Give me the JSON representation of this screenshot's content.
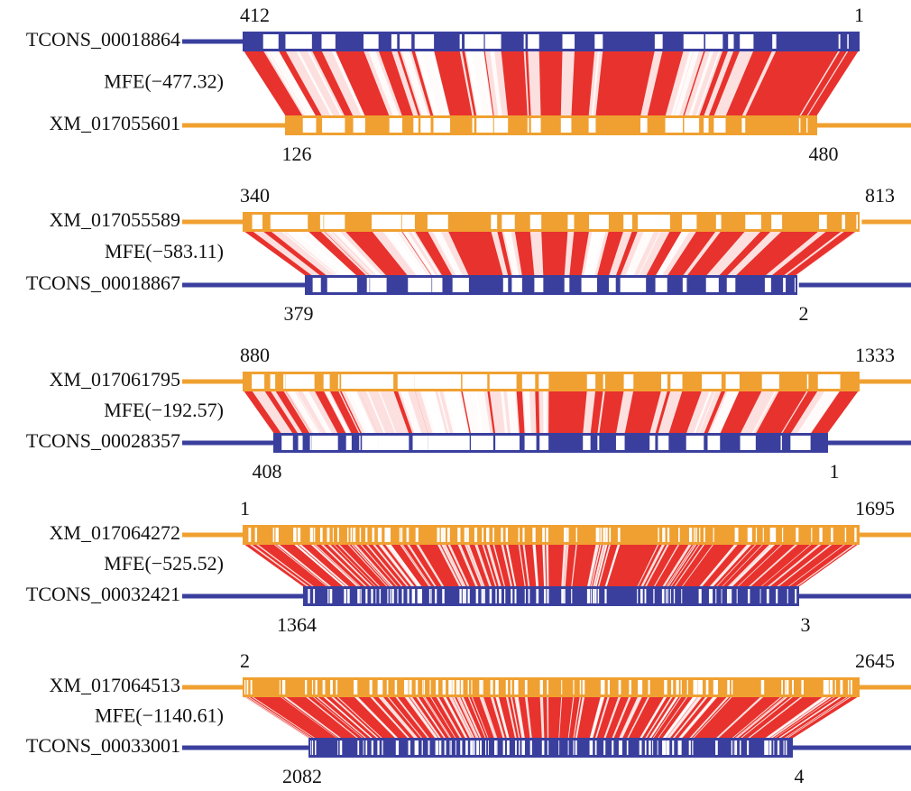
{
  "colors": {
    "lnc": "#3a3f9e",
    "mrna": "#f0a030",
    "link": "#e8322d",
    "background": "#ffffff"
  },
  "panels": [
    {
      "top_id": "TCONS_00018864",
      "bottom_id": "XM_017055601",
      "mfe": "MFE(−477.32)",
      "top_start": "412",
      "top_end": "1",
      "bottom_start": "126",
      "bottom_end": "480",
      "top_kind": "lnc",
      "bottom_kind": "mrna"
    },
    {
      "top_id": "XM_017055589",
      "bottom_id": "TCONS_00018867",
      "mfe": "MFE(−583.11)",
      "top_start": "340",
      "top_end": "813",
      "bottom_start": "379",
      "bottom_end": "2",
      "top_kind": "mrna",
      "bottom_kind": "lnc"
    },
    {
      "top_id": "XM_017061795",
      "bottom_id": "TCONS_00028357",
      "mfe": "MFE(−192.57)",
      "top_start": "880",
      "top_end": "1333",
      "bottom_start": "408",
      "bottom_end": "1",
      "top_kind": "mrna",
      "bottom_kind": "lnc"
    },
    {
      "top_id": "XM_017064272",
      "bottom_id": "TCONS_00032421",
      "mfe": "MFE(−525.52)",
      "top_start": "1",
      "top_end": "1695",
      "bottom_start": "1364",
      "bottom_end": "3",
      "top_kind": "mrna",
      "bottom_kind": "lnc"
    },
    {
      "top_id": "XM_017064513",
      "bottom_id": "TCONS_00033001",
      "mfe": "MFE(−1140.61)",
      "top_start": "2",
      "top_end": "2645",
      "bottom_start": "2082",
      "bottom_end": "4",
      "top_kind": "mrna",
      "bottom_kind": "lnc"
    }
  ]
}
